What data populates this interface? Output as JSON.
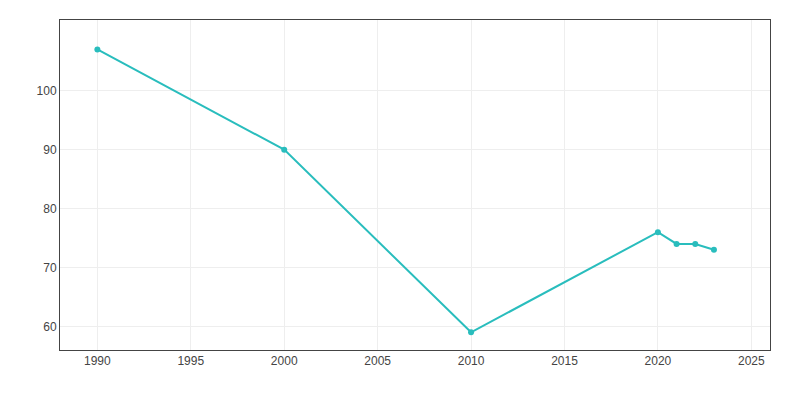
{
  "chart_data": {
    "type": "line",
    "x": [
      1990,
      2000,
      2010,
      2020,
      2021,
      2022,
      2023
    ],
    "values": [
      107,
      90,
      59,
      76,
      74,
      74,
      73
    ],
    "color": "#29BDBD",
    "marker": "circle",
    "xlim": [
      1988,
      2026
    ],
    "ylim": [
      56,
      112
    ],
    "xticks": [
      1990,
      1995,
      2000,
      2005,
      2010,
      2015,
      2020,
      2025
    ],
    "yticks": [
      60,
      70,
      80,
      90,
      100
    ],
    "grid": true
  }
}
